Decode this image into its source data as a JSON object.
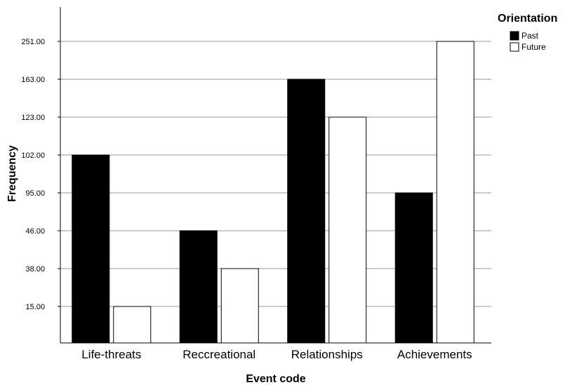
{
  "chart_data": {
    "type": "bar",
    "categories": [
      "Life-threats",
      "Reccreational",
      "Relationships",
      "Achievements"
    ],
    "series": [
      {
        "name": "Past",
        "values": [
          102,
          46,
          163,
          95
        ],
        "color": "#000000"
      },
      {
        "name": "Future",
        "values": [
          15,
          38,
          123,
          251
        ],
        "color": "#ffffff"
      }
    ],
    "y_tick_labels": [
      "15.00",
      "38.00",
      "46.00",
      "95.00",
      "102.00",
      "123.00",
      "163.00",
      "251.00"
    ],
    "y_scale": "ordinal",
    "xlabel": "Event code",
    "ylabel": "Frequency",
    "legend_title": "Orientation",
    "legend_position": "top-right",
    "grid": true,
    "bar_outline_color": "#000000",
    "grid_color": "#999999"
  }
}
